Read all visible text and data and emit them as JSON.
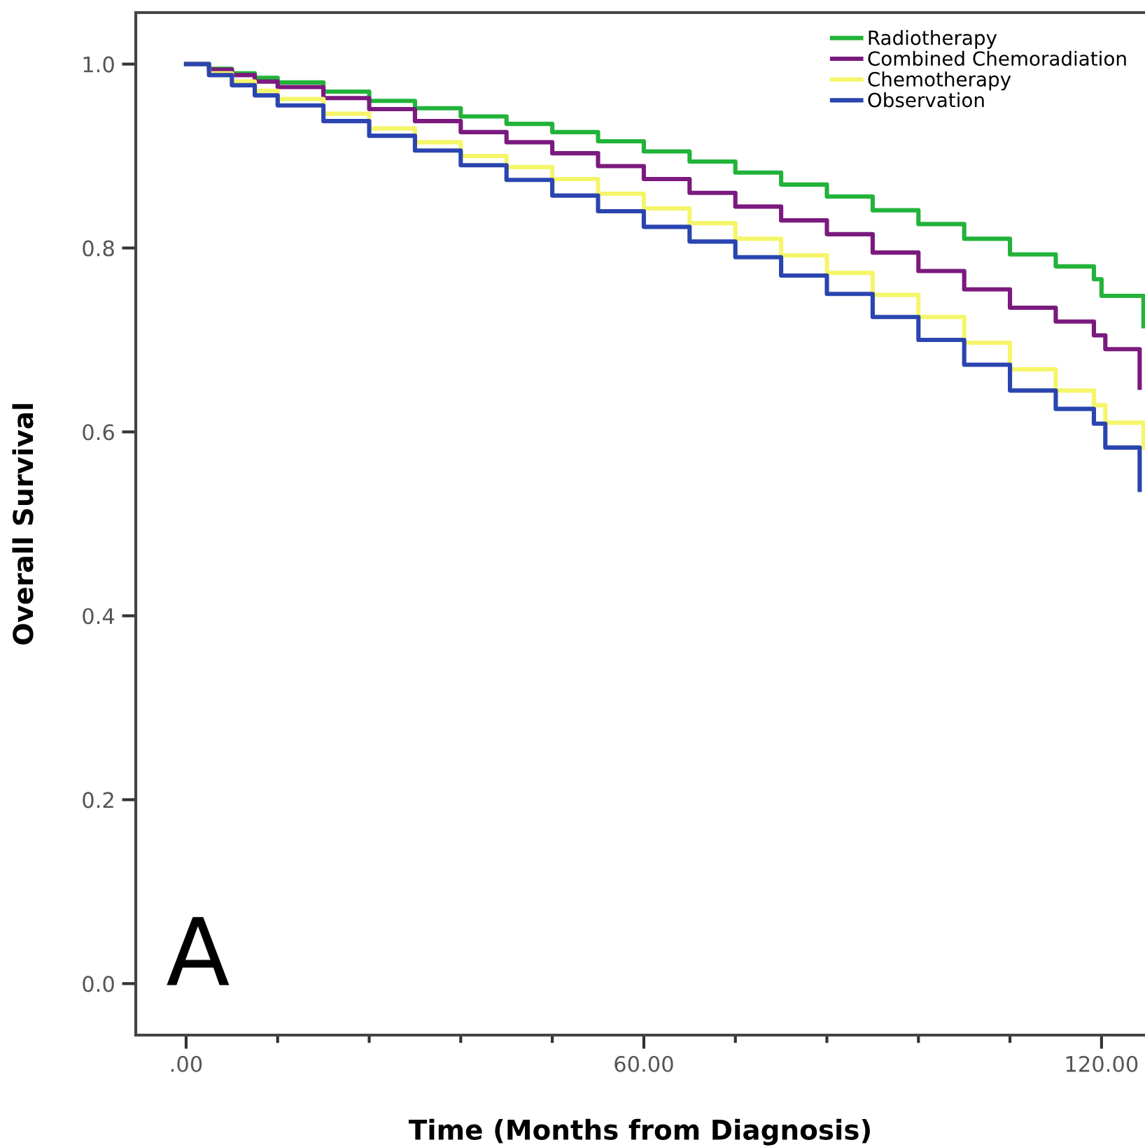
{
  "chart_data": {
    "type": "step",
    "xlabel": "Time (Months from Diagnosis)",
    "ylabel": "Overall Survival",
    "annotations": [
      "A"
    ],
    "xlim": [
      -6.6,
      125.7
    ],
    "ylim": [
      -0.056,
      1.056
    ],
    "xticks": [
      {
        "value": 0,
        "label": ".00"
      },
      {
        "value": 12,
        "label": null
      },
      {
        "value": 24,
        "label": null
      },
      {
        "value": 36,
        "label": null
      },
      {
        "value": 48,
        "label": null
      },
      {
        "value": 60,
        "label": "60.00"
      },
      {
        "value": 72,
        "label": null
      },
      {
        "value": 84,
        "label": null
      },
      {
        "value": 96,
        "label": null
      },
      {
        "value": 108,
        "label": null
      },
      {
        "value": 120,
        "label": "120.00"
      }
    ],
    "yticks": [
      {
        "value": 0,
        "label": "0.0"
      },
      0.2,
      0.4,
      0.6,
      0.8,
      {
        "value": 1,
        "label": "1.0"
      }
    ],
    "grid": false,
    "legend": "top right",
    "line_style": "solid",
    "marker": "none",
    "series": [
      {
        "name": "Radiotherapy",
        "color": "#22b33a",
        "x": [
          0,
          3,
          6,
          9,
          12,
          18,
          24,
          30,
          36,
          42,
          48,
          54,
          60,
          66,
          72,
          78,
          84,
          90,
          96,
          102,
          108,
          114,
          119,
          120,
          125,
          125.5
        ],
        "values": [
          1.0,
          0.995,
          0.99,
          0.985,
          0.98,
          0.97,
          0.96,
          0.952,
          0.943,
          0.935,
          0.926,
          0.916,
          0.905,
          0.894,
          0.882,
          0.869,
          0.856,
          0.841,
          0.826,
          0.81,
          0.793,
          0.78,
          0.766,
          0.748,
          0.748,
          0.715
        ]
      },
      {
        "name": "Combined Chemoradiation",
        "color": "#7b1a7e",
        "x": [
          0,
          3,
          6,
          9,
          12,
          18,
          24,
          30,
          36,
          42,
          48,
          54,
          60,
          66,
          72,
          78,
          84,
          90,
          96,
          102,
          108,
          114,
          119,
          120.5,
          124.5,
          125
        ],
        "values": [
          1.0,
          0.994,
          0.988,
          0.981,
          0.975,
          0.963,
          0.951,
          0.938,
          0.926,
          0.915,
          0.903,
          0.889,
          0.875,
          0.86,
          0.845,
          0.83,
          0.815,
          0.795,
          0.775,
          0.755,
          0.735,
          0.72,
          0.705,
          0.69,
          0.69,
          0.648
        ]
      },
      {
        "name": "Chemotherapy",
        "color": "#f5f56a",
        "x": [
          0,
          3,
          6,
          9,
          12,
          18,
          24,
          30,
          36,
          42,
          48,
          54,
          60,
          66,
          72,
          78,
          84,
          90,
          96,
          102,
          108,
          114,
          119,
          120.5,
          125,
          125.5
        ],
        "values": [
          1.0,
          0.99,
          0.981,
          0.971,
          0.962,
          0.946,
          0.93,
          0.915,
          0.9,
          0.888,
          0.875,
          0.859,
          0.843,
          0.827,
          0.81,
          0.792,
          0.773,
          0.749,
          0.725,
          0.697,
          0.668,
          0.645,
          0.629,
          0.61,
          0.61,
          0.583
        ]
      },
      {
        "name": "Observation",
        "color": "#2a45b0",
        "x": [
          0,
          3,
          6,
          9,
          12,
          18,
          24,
          30,
          36,
          42,
          48,
          54,
          60,
          66,
          72,
          78,
          84,
          90,
          96,
          102,
          108,
          114,
          119,
          120.5,
          124.5,
          125
        ],
        "values": [
          1.0,
          0.988,
          0.977,
          0.966,
          0.955,
          0.938,
          0.922,
          0.906,
          0.89,
          0.874,
          0.857,
          0.84,
          0.823,
          0.807,
          0.79,
          0.77,
          0.75,
          0.725,
          0.7,
          0.673,
          0.645,
          0.625,
          0.609,
          0.583,
          0.583,
          0.537
        ]
      }
    ]
  }
}
